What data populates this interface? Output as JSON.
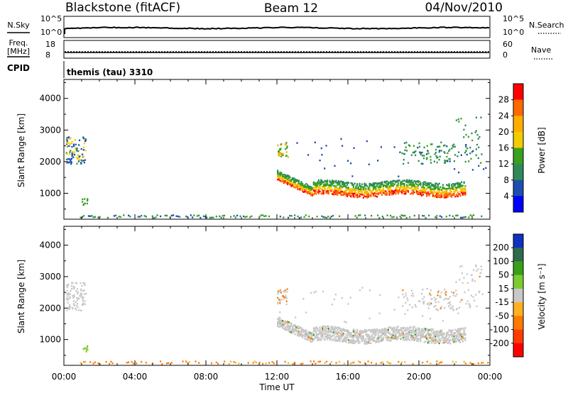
{
  "header": {
    "title": "Blackstone (fitACF)",
    "beam": "Beam 12",
    "date": "04/Nov/2010"
  },
  "top_panel": {
    "left_label": "N.Sky",
    "right_label": "N.Search",
    "ytick_high": "10^5",
    "ytick_low": "10^0"
  },
  "freq_panel": {
    "left_label_1": "Freq.",
    "left_label_2": "[MHz]",
    "left_tick_high": "18",
    "left_tick_low": "8",
    "right_label": "Nave",
    "right_tick_high": "60",
    "right_tick_low": "0"
  },
  "cpid_panel": {
    "label": "CPID",
    "value": "themis (tau) 3310"
  },
  "colorbars": {
    "power": {
      "label": "Power [dB]",
      "ticks": [
        "28",
        "24",
        "20",
        "16",
        "12",
        "8",
        "4"
      ],
      "colors": [
        "#ff0000",
        "#ff6a00",
        "#ffae00",
        "#f2cc00",
        "#3aa01e",
        "#2e8b57",
        "#1d4fb0",
        "#0000ff"
      ]
    },
    "velocity": {
      "label": "Velocity [m s⁻¹]",
      "ticks": [
        "200",
        "100",
        "50",
        "15",
        "-15",
        "-50",
        "-100",
        "-200"
      ],
      "colors": [
        "#1030c0",
        "#2e6b4a",
        "#38a018",
        "#7ccc30",
        "#c8c8c8",
        "#ffb020",
        "#ff7a00",
        "#ff3c00",
        "#ff0000"
      ]
    }
  },
  "chart_data": [
    {
      "type": "heatmap",
      "panel": "power",
      "ylabel": "Slant Range [km]",
      "ylim": [
        180,
        4600
      ],
      "yticks": [
        "4000",
        "3000",
        "2000",
        "1000"
      ],
      "xlim": [
        "00:00",
        "24:00"
      ],
      "colorbar": "Power [dB]",
      "regions": [
        {
          "name": "near-range ground scatter band",
          "t_start": 0.9,
          "t_end": 24.0,
          "range_km": [
            200,
            300
          ],
          "power_db": 6
        },
        {
          "name": "early-hours cluster",
          "t_start": 0.1,
          "t_end": 1.2,
          "range_km": [
            1900,
            2800
          ],
          "power_db": 10
        },
        {
          "name": "evening main echo",
          "t_start": 12.0,
          "t_end": 22.6,
          "range_km": [
            800,
            1500
          ],
          "power_db": 26
        },
        {
          "name": "late far-range scatter",
          "t_start": 19.0,
          "t_end": 23.6,
          "range_km": [
            1900,
            2600
          ],
          "power_db": 8
        }
      ]
    },
    {
      "type": "heatmap",
      "panel": "velocity",
      "ylabel": "Slant Range [km]",
      "ylim": [
        180,
        4600
      ],
      "yticks": [
        "4000",
        "3000",
        "2000",
        "1000"
      ],
      "xlim": [
        "00:00",
        "24:00"
      ],
      "xticks": [
        "00:00",
        "04:00",
        "08:00",
        "12:00",
        "16:00",
        "20:00",
        "00:00"
      ],
      "xlabel": "Time UT",
      "colorbar": "Velocity [m s⁻¹]",
      "regions": [
        {
          "name": "near-range ground scatter band",
          "t_start": 0.9,
          "t_end": 24.0,
          "range_km": [
            200,
            300
          ],
          "velocity": -40
        },
        {
          "name": "early-hours cluster",
          "t_start": 0.1,
          "t_end": 1.2,
          "range_km": [
            1900,
            2800
          ],
          "velocity": 0
        },
        {
          "name": "evening main echo",
          "t_start": 12.0,
          "t_end": 22.6,
          "range_km": [
            800,
            1500
          ],
          "velocity": 0
        },
        {
          "name": "late far-range scatter",
          "t_start": 19.0,
          "t_end": 23.6,
          "range_km": [
            1900,
            2600
          ],
          "velocity": 0
        }
      ]
    }
  ]
}
